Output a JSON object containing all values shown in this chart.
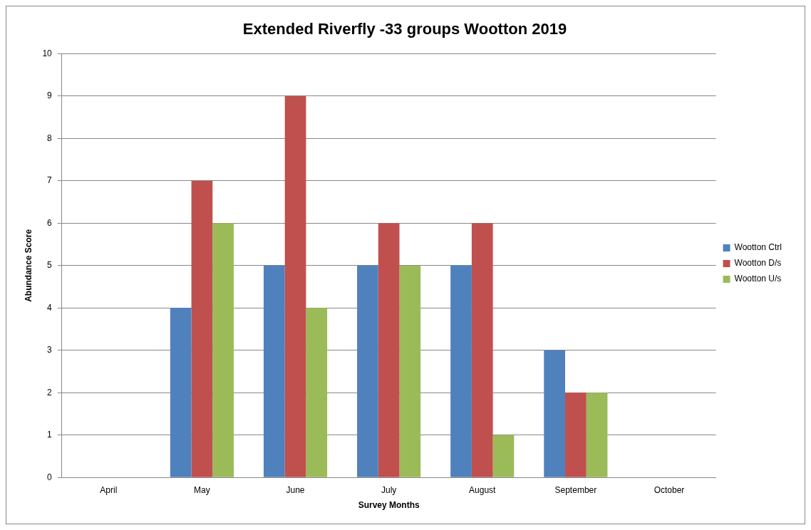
{
  "chart_data": {
    "type": "bar",
    "title": "Extended Riverfly -33 groups Wootton 2019",
    "xlabel": "Survey Months",
    "ylabel": "Abundance Score",
    "categories": [
      "April",
      "May",
      "June",
      "July",
      "August",
      "September",
      "October"
    ],
    "series": [
      {
        "name": "Wootton Ctrl",
        "color": "#4f81bd",
        "values": [
          null,
          4,
          5,
          5,
          5,
          3,
          null
        ]
      },
      {
        "name": "Wootton D/s",
        "color": "#c0504d",
        "values": [
          null,
          7,
          9,
          6,
          6,
          2,
          null
        ]
      },
      {
        "name": "Wootton U/s",
        "color": "#9bbb59",
        "values": [
          null,
          6,
          4,
          5,
          1,
          2,
          null
        ]
      }
    ],
    "ylim": [
      0,
      10
    ],
    "yticks": [
      0,
      1,
      2,
      3,
      4,
      5,
      6,
      7,
      8,
      9,
      10
    ],
    "grid": "y",
    "legend": "right"
  }
}
